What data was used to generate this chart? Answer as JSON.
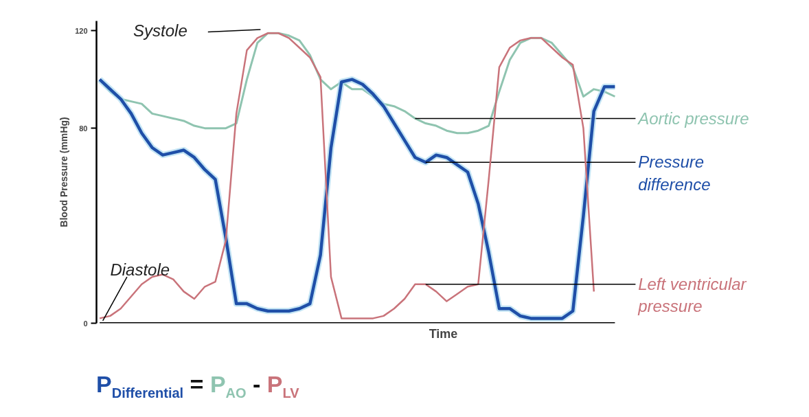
{
  "chart_data": {
    "type": "line",
    "xlabel": "Time",
    "ylabel": "Blood Pressure (mmHg)",
    "categories": [
      null,
      null,
      null,
      null,
      null,
      null,
      null,
      null,
      null,
      null,
      null,
      null,
      null,
      null,
      null,
      null,
      null,
      null,
      null,
      null,
      null,
      null,
      null,
      null,
      null,
      null,
      null,
      null,
      null,
      null,
      null,
      null,
      null,
      null,
      null,
      null,
      null,
      null,
      null,
      null,
      null,
      null,
      null,
      null,
      null,
      null,
      null,
      null,
      null,
      null
    ],
    "ylim": [
      0,
      124
    ],
    "yticks": [
      0,
      80,
      120
    ],
    "tick_labels": "y",
    "grid": false,
    "marker": "none",
    "line_style": "solid",
    "series": [
      {
        "name": "Aortic pressure",
        "color": "#8fc4b0",
        "values": [
          100,
          95,
          92,
          91,
          90,
          86,
          85,
          84,
          83,
          81,
          80,
          80,
          80,
          82,
          100,
          115,
          119,
          119,
          118,
          116,
          110,
          100,
          96,
          99,
          96,
          96,
          93,
          90,
          89,
          87,
          84,
          82,
          81,
          79,
          78,
          78,
          79,
          81,
          95,
          108,
          115,
          117,
          117,
          115,
          110,
          105,
          93,
          96,
          95,
          93
        ]
      },
      {
        "name": "Pressure difference",
        "color": "#1f4fa8",
        "values": [
          100,
          96,
          92,
          86,
          78,
          72,
          69,
          70,
          71,
          68,
          63,
          59,
          35,
          8,
          8,
          6,
          5,
          5,
          5,
          6,
          8,
          28,
          72,
          99,
          100,
          98,
          94,
          89,
          82,
          75,
          68,
          66,
          69,
          68,
          65,
          62,
          49,
          29,
          6,
          6,
          3,
          2,
          2,
          2,
          2,
          5,
          44,
          87,
          97,
          97
        ]
      },
      {
        "name": "Left ventricular pressure",
        "color": "#c9737a",
        "values": [
          2,
          3,
          6,
          11,
          16,
          19,
          20,
          18,
          13,
          10,
          15,
          17,
          34,
          86,
          112,
          117,
          119,
          119,
          117,
          113,
          109,
          101,
          19,
          2,
          2,
          2,
          2,
          3,
          6,
          10,
          16,
          16,
          13,
          9,
          12,
          15,
          16,
          59,
          105,
          113,
          116,
          117,
          117,
          113,
          109,
          106,
          80,
          13,
          null,
          null
        ]
      }
    ],
    "annotations": [
      "Systole",
      "Diastole",
      "P$_{Differential}$ = P$_{AO}$ - P$_{LV}$"
    ]
  }
}
